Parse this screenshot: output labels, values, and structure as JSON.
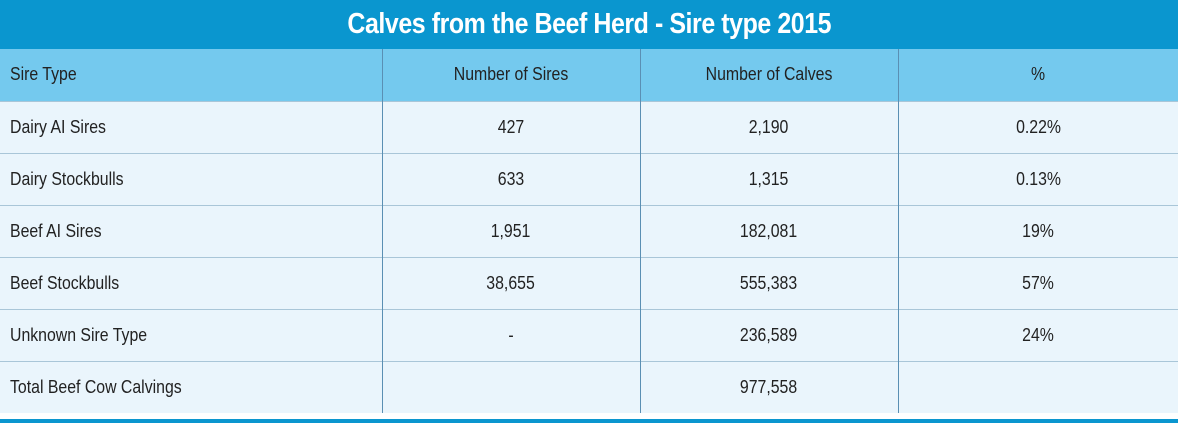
{
  "title": "Calves from the Beef Herd - Sire type 2015",
  "columns": [
    "Sire Type",
    "Number of Sires",
    "Number of Calves",
    "%"
  ],
  "rows": [
    {
      "sire_type": "Dairy AI Sires",
      "sires": "427",
      "calves": "2,190",
      "pct": "0.22%"
    },
    {
      "sire_type": "Dairy Stockbulls",
      "sires": "633",
      "calves": "1,315",
      "pct": "0.13%"
    },
    {
      "sire_type": "Beef AI Sires",
      "sires": "1,951",
      "calves": "182,081",
      "pct": "19%"
    },
    {
      "sire_type": "Beef Stockbulls",
      "sires": "38,655",
      "calves": "555,383",
      "pct": "57%"
    },
    {
      "sire_type": "Unknown Sire Type",
      "sires": "-",
      "calves": "236,589",
      "pct": "24%"
    },
    {
      "sire_type": "Total Beef Cow Calvings",
      "sires": "",
      "calves": "977,558",
      "pct": ""
    }
  ],
  "colors": {
    "title_bar": "#0a96cf",
    "header_row": "#74c9ee",
    "body_row": "#eaf5fc"
  }
}
